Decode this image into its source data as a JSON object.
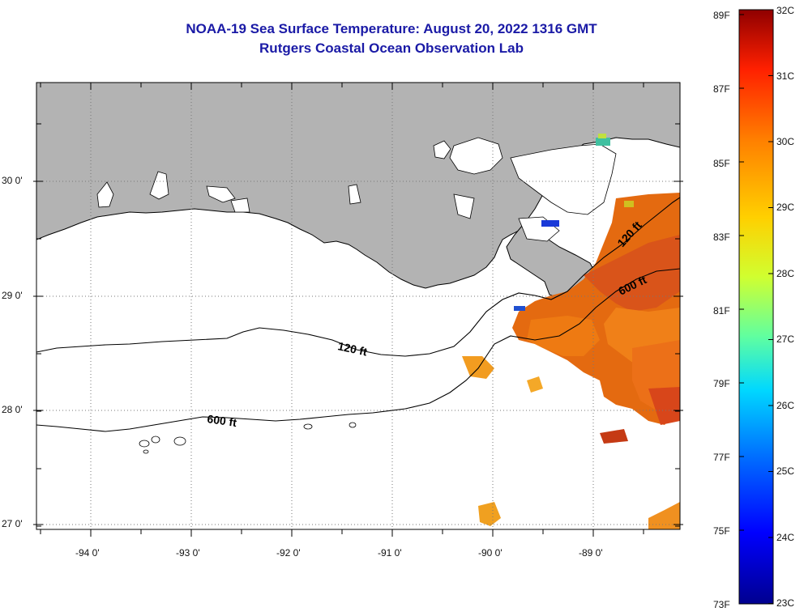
{
  "header": {
    "title": "NOAA-19 Sea Surface Temperature:  August 20, 2022 1316 GMT",
    "subtitle": "Rutgers Coastal Ocean Observation Lab"
  },
  "map": {
    "lon_labels": [
      "-94 0'",
      "-93 0'",
      "-92 0'",
      "-91 0'",
      "-90 0'",
      "-89 0'"
    ],
    "lat_labels": [
      "30 0'",
      "29 0'",
      "28 0'",
      "27 0'"
    ],
    "contours": {
      "c120_label": "120 ft",
      "c600_label": "600 ft",
      "c120_label_east": "120 ft",
      "c600_label_east": "600 ft"
    },
    "colors": {
      "land": "#b3b3b3",
      "ocean": "#ffffff",
      "title": "#1a1aa6"
    }
  },
  "colorbar": {
    "f_labels": [
      "89F",
      "87F",
      "85F",
      "83F",
      "81F",
      "79F",
      "77F",
      "75F",
      "73F"
    ],
    "c_labels": [
      "32C",
      "31C",
      "30C",
      "29C",
      "28C",
      "27C",
      "26C",
      "25C",
      "24C",
      "23C"
    ],
    "colors": [
      "#00008f",
      "#0000ff",
      "#0070ff",
      "#00d8ff",
      "#60ffa0",
      "#d0ff30",
      "#ffd000",
      "#ff8000",
      "#ff2000",
      "#8f0000"
    ]
  }
}
